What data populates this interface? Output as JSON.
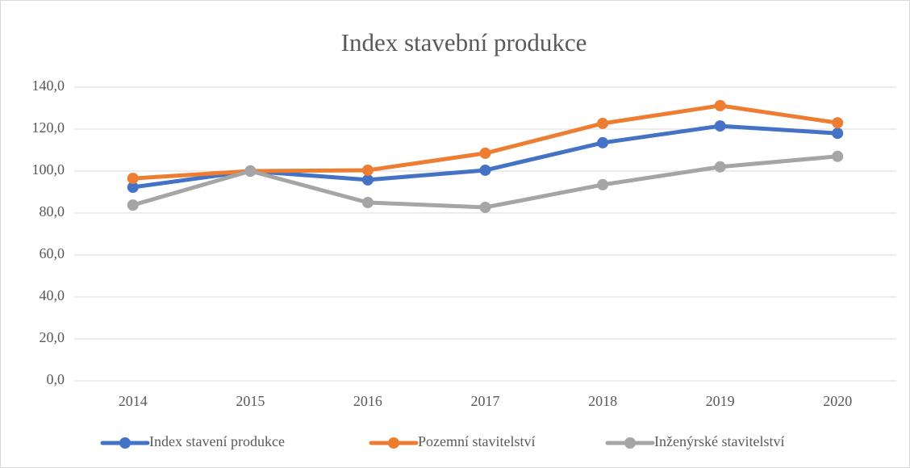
{
  "chart_data": {
    "type": "line",
    "title": "Index stavební produkce",
    "categories": [
      "2014",
      "2015",
      "2016",
      "2017",
      "2018",
      "2019",
      "2020"
    ],
    "series": [
      {
        "name": "Index stavení produkce",
        "color": "#4472c4",
        "values": [
          92.3,
          100,
          95.8,
          100.4,
          113.5,
          121.5,
          118
        ]
      },
      {
        "name": "Pozemní stavitelství",
        "color": "#ed7d31",
        "values": [
          96.5,
          100,
          100.4,
          108.5,
          122.7,
          131.2,
          123
        ]
      },
      {
        "name": "Inženýrské stavitelství",
        "color": "#a5a5a5",
        "values": [
          83.8,
          100,
          85,
          82.7,
          93.5,
          102,
          107
        ]
      }
    ],
    "ylim": [
      0,
      140
    ],
    "yticks": [
      {
        "value": 0,
        "label": "0,0"
      },
      {
        "value": 20,
        "label": "20,0"
      },
      {
        "value": 40,
        "label": "40,0"
      },
      {
        "value": 60,
        "label": "60,0"
      },
      {
        "value": 80,
        "label": "80,0"
      },
      {
        "value": 100,
        "label": "100,0"
      },
      {
        "value": 120,
        "label": "120,0"
      },
      {
        "value": 140,
        "label": "140,0"
      }
    ],
    "grid": true,
    "legend": "bottom"
  }
}
